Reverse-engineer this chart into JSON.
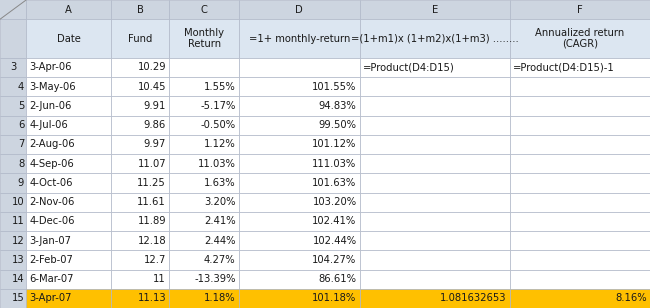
{
  "col_widths": [
    0.27,
    0.88,
    0.6,
    0.72,
    1.25,
    1.55,
    1.45
  ],
  "col_letters": [
    "",
    "A",
    "B",
    "C",
    "D",
    "E",
    "F"
  ],
  "header_line1": [
    "",
    "Date",
    "Fund",
    "Monthly",
    "=1+ monthly-return",
    "=(1+m1)x (1+m2)x(1+m3) ........",
    "Annualized return"
  ],
  "header_line2": [
    "",
    "",
    "",
    "Return",
    "",
    "",
    "(CAGR)"
  ],
  "formula_row": [
    "3",
    "3-Apr-06",
    "10.29",
    "",
    "",
    "=Product(D4:D15)",
    "=Product(D4:D15)-1"
  ],
  "data_rows": [
    [
      "4",
      "3-May-06",
      "10.45",
      "1.55%",
      "101.55%",
      "",
      ""
    ],
    [
      "5",
      "2-Jun-06",
      "9.91",
      "-5.17%",
      "94.83%",
      "",
      ""
    ],
    [
      "6",
      "4-Jul-06",
      "9.86",
      "-0.50%",
      "99.50%",
      "",
      ""
    ],
    [
      "7",
      "2-Aug-06",
      "9.97",
      "1.12%",
      "101.12%",
      "",
      ""
    ],
    [
      "8",
      "4-Sep-06",
      "11.07",
      "11.03%",
      "111.03%",
      "",
      ""
    ],
    [
      "9",
      "4-Oct-06",
      "11.25",
      "1.63%",
      "101.63%",
      "",
      ""
    ],
    [
      "10",
      "2-Nov-06",
      "11.61",
      "3.20%",
      "103.20%",
      "",
      ""
    ],
    [
      "11",
      "4-Dec-06",
      "11.89",
      "2.41%",
      "102.41%",
      "",
      ""
    ],
    [
      "12",
      "3-Jan-07",
      "12.18",
      "2.44%",
      "102.44%",
      "",
      ""
    ],
    [
      "13",
      "2-Feb-07",
      "12.7",
      "4.27%",
      "104.27%",
      "",
      ""
    ],
    [
      "14",
      "6-Mar-07",
      "11",
      "-13.39%",
      "86.61%",
      "",
      ""
    ],
    [
      "15",
      "3-Apr-07",
      "11.13",
      "1.18%",
      "101.18%",
      "1.081632653",
      "8.16%"
    ]
  ],
  "highlight_last_row": true,
  "bg_col_header": "#cdd5e0",
  "bg_header": "#dce6f1",
  "bg_white": "#ffffff",
  "bg_highlight": "#ffc000",
  "grid_color": "#b0b8c8",
  "text_color": "#1a1a1a",
  "font_size": 7.2,
  "corner_color": "#b0b8c8"
}
